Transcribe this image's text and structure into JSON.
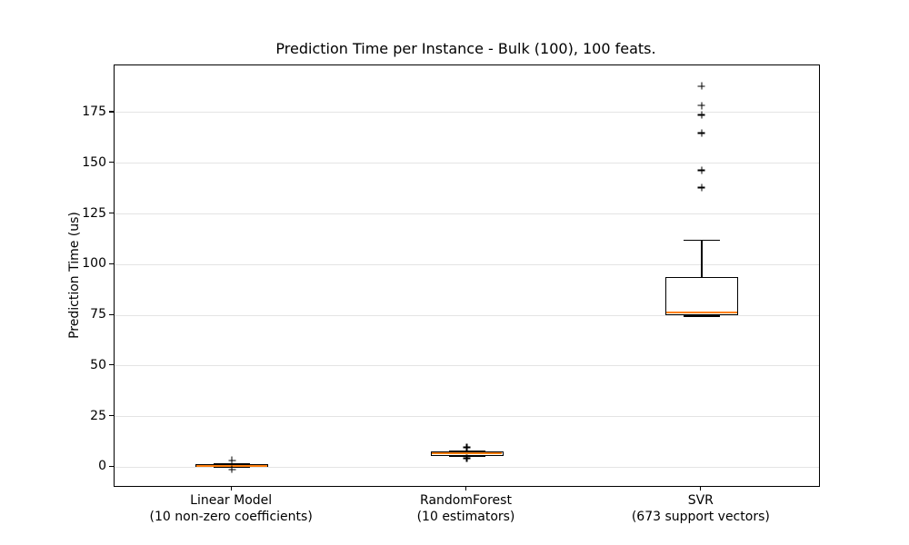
{
  "chart_data": {
    "type": "boxplot",
    "title": "Prediction Time per Instance - Bulk (100), 100 feats.",
    "xlabel": "",
    "ylabel": "Prediction Time (us)",
    "yticks": [
      0,
      25,
      50,
      75,
      100,
      125,
      150,
      175
    ],
    "ylim": [
      -9.2,
      198.3
    ],
    "grid": "horizontal-only",
    "legend": "none",
    "colors": {
      "box_line": "#000000",
      "median": "#ff7f0e",
      "flier": "#000000",
      "grid": "#e4e4e4",
      "background": "#ffffff"
    },
    "categories": [
      {
        "line1": "Linear Model",
        "line2": "(10 non-zero coefficients)"
      },
      {
        "line1": "RandomForest",
        "line2": "(10 estimators)"
      },
      {
        "line1": "SVR",
        "line2": "(673 support vectors)"
      }
    ],
    "series": [
      {
        "name": "Linear Model (10 non-zero coefficients)",
        "whisker_low": 0.0,
        "q1": 0.15,
        "median": 0.65,
        "q3": 1.35,
        "whisker_high": 1.5,
        "fliers": [
          3.4,
          -1.1
        ]
      },
      {
        "name": "RandomForest (10 estimators)",
        "whisker_low": 5.6,
        "q1": 5.75,
        "median": 6.8,
        "q3": 7.85,
        "whisker_high": 8.0,
        "fliers": [
          9.8,
          4.5
        ]
      },
      {
        "name": "SVR (673 support vectors)",
        "whisker_low": 74.5,
        "q1": 75.2,
        "median": 76.5,
        "q3": 93.7,
        "whisker_high": 112.0,
        "fliers": [
          138.0,
          146.5,
          165.0,
          174.0,
          178.5,
          188.0
        ]
      }
    ]
  }
}
